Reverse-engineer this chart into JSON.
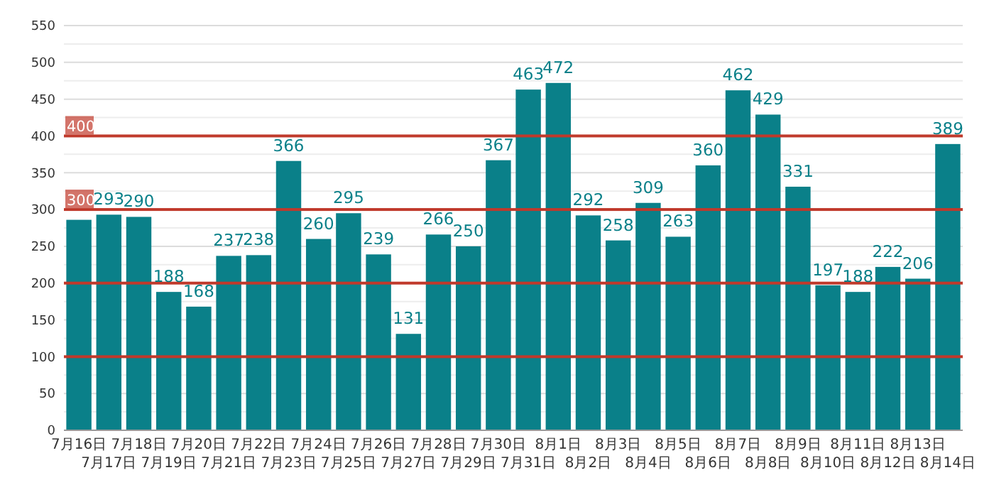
{
  "chart_data": {
    "type": "bar",
    "categories": [
      "7月16日",
      "7月17日",
      "7月18日",
      "7月19日",
      "7月20日",
      "7月21日",
      "7月22日",
      "7月23日",
      "7月24日",
      "7月25日",
      "7月26日",
      "7月27日",
      "7月28日",
      "7月29日",
      "7月30日",
      "7月31日",
      "8月1日",
      "8月2日",
      "8月3日",
      "8月4日",
      "8月5日",
      "8月6日",
      "8月7日",
      "8月8日",
      "8月9日",
      "8月10日",
      "8月11日",
      "8月12日",
      "8月13日",
      "8月14日"
    ],
    "values": [
      286,
      293,
      290,
      188,
      168,
      237,
      238,
      366,
      260,
      295,
      239,
      131,
      266,
      250,
      367,
      463,
      472,
      292,
      258,
      309,
      263,
      360,
      462,
      429,
      331,
      197,
      188,
      222,
      206,
      389
    ],
    "value_labels": [
      null,
      "293",
      "290",
      "188",
      "168",
      "237",
      "238",
      "366",
      "260",
      "295",
      "239",
      "131",
      "266",
      "250",
      "367",
      "463",
      "472",
      "292",
      "258",
      "309",
      "263",
      "360",
      "462",
      "429",
      "331",
      "197",
      "188",
      "222",
      "206",
      "389"
    ],
    "color": "#0a8089",
    "ylim": [
      0,
      550
    ],
    "yticks": [
      0,
      {
        "value": 25,
        "label": null
      },
      50,
      {
        "value": 75,
        "label": null
      },
      100,
      {
        "value": 125,
        "label": null
      },
      150,
      {
        "value": 175,
        "label": null
      },
      200,
      {
        "value": 225,
        "label": null
      },
      250,
      {
        "value": 275,
        "label": null
      },
      300,
      {
        "value": 325,
        "label": null
      },
      350,
      {
        "value": 375,
        "label": null
      },
      400,
      {
        "value": 425,
        "label": null
      },
      450,
      {
        "value": 475,
        "label": null
      },
      500,
      {
        "value": 525,
        "label": null
      },
      550
    ],
    "grid": "y",
    "ref_lines": [
      {
        "axis": "y",
        "value": 100,
        "color": "#c0392b"
      },
      {
        "axis": "y",
        "value": 200,
        "color": "#c0392b"
      },
      {
        "axis": "y",
        "value": 300,
        "label": "300",
        "color": "#c0392b"
      },
      {
        "axis": "y",
        "value": 400,
        "label": "400",
        "color": "#c0392b"
      }
    ]
  }
}
